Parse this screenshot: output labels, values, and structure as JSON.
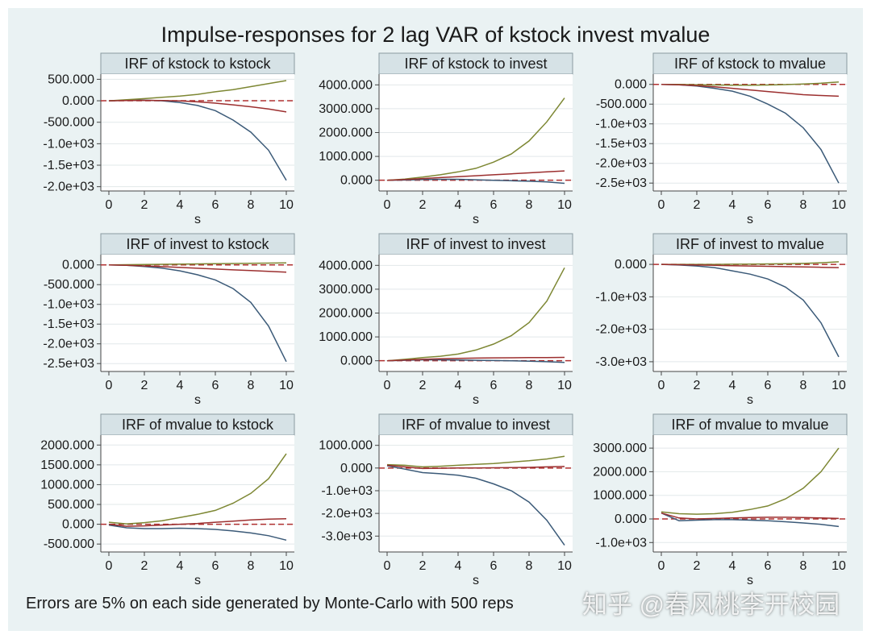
{
  "title": "Impulse-responses for 2 lag VAR of kstock invest mvalue",
  "note": "Errors are 5% on each side generated by Monte-Carlo with 500 reps",
  "watermark": "知乎 @春风桃李开校园",
  "colors": {
    "lower": "#9c2f2f",
    "upper": "#7d8733",
    "irf": "#3b5a78",
    "zero": "#b03030",
    "panel_bg": "#ffffff",
    "outer_bg": "#eaf2f3",
    "header_bg": "#d6e2e6"
  },
  "chart_data": [
    {
      "type": "line",
      "title": "IRF of kstock to kstock",
      "xlabel": "s",
      "xlim": [
        0,
        10
      ],
      "xticks": [
        "0",
        "2",
        "4",
        "6",
        "8",
        "10"
      ],
      "ylim": [
        -2100,
        620
      ],
      "yticks": [
        {
          "v": 500,
          "label": "500.000"
        },
        {
          "v": 0,
          "label": "0.000"
        },
        {
          "v": -500,
          "label": "-500.000"
        },
        {
          "v": -1000,
          "label": "-1.0e+03"
        },
        {
          "v": -1500,
          "label": "-1.5e+03"
        },
        {
          "v": -2000,
          "label": "-2.0e+03"
        }
      ],
      "x": [
        0,
        1,
        2,
        3,
        4,
        5,
        6,
        7,
        8,
        9,
        10
      ],
      "series": [
        {
          "role": "irf",
          "values": [
            0,
            10,
            15,
            0,
            -40,
            -110,
            -230,
            -450,
            -730,
            -1150,
            -1850
          ]
        },
        {
          "role": "upper",
          "values": [
            0,
            25,
            50,
            80,
            110,
            150,
            210,
            260,
            330,
            400,
            470
          ]
        },
        {
          "role": "lower",
          "values": [
            0,
            5,
            10,
            5,
            -5,
            -25,
            -55,
            -95,
            -140,
            -190,
            -260
          ]
        }
      ]
    },
    {
      "type": "line",
      "title": "IRF of kstock to invest",
      "xlabel": "s",
      "xlim": [
        0,
        10
      ],
      "xticks": [
        "0",
        "2",
        "4",
        "6",
        "8",
        "10"
      ],
      "ylim": [
        -450,
        4450
      ],
      "yticks": [
        {
          "v": 4000,
          "label": "4000.000"
        },
        {
          "v": 3000,
          "label": "3000.000"
        },
        {
          "v": 2000,
          "label": "2000.000"
        },
        {
          "v": 1000,
          "label": "1000.000"
        },
        {
          "v": 0,
          "label": "0.000"
        }
      ],
      "x": [
        0,
        1,
        2,
        3,
        4,
        5,
        6,
        7,
        8,
        9,
        10
      ],
      "series": [
        {
          "role": "irf",
          "values": [
            0,
            10,
            30,
            40,
            40,
            20,
            0,
            -20,
            -40,
            -70,
            -130
          ]
        },
        {
          "role": "upper",
          "values": [
            0,
            50,
            130,
            230,
            350,
            500,
            760,
            1100,
            1650,
            2450,
            3450
          ]
        },
        {
          "role": "lower",
          "values": [
            0,
            30,
            70,
            110,
            150,
            190,
            230,
            270,
            310,
            350,
            390
          ]
        }
      ]
    },
    {
      "type": "line",
      "title": "IRF of kstock to mvalue",
      "xlabel": "s",
      "xlim": [
        0,
        10
      ],
      "xticks": [
        "0",
        "2",
        "4",
        "6",
        "8",
        "10"
      ],
      "ylim": [
        -2700,
        260
      ],
      "yticks": [
        {
          "v": 0,
          "label": "0.000"
        },
        {
          "v": -500,
          "label": "-500.000"
        },
        {
          "v": -1000,
          "label": "-1.0e+03"
        },
        {
          "v": -1500,
          "label": "-1.5e+03"
        },
        {
          "v": -2000,
          "label": "-2.0e+03"
        },
        {
          "v": -2500,
          "label": "-2.5e+03"
        }
      ],
      "x": [
        0,
        1,
        2,
        3,
        4,
        5,
        6,
        7,
        8,
        9,
        10
      ],
      "series": [
        {
          "role": "irf",
          "values": [
            0,
            -10,
            -40,
            -100,
            -170,
            -300,
            -500,
            -730,
            -1100,
            -1650,
            -2500
          ]
        },
        {
          "role": "upper",
          "values": [
            0,
            0,
            -10,
            -15,
            -20,
            -20,
            -15,
            -5,
            10,
            30,
            60
          ]
        },
        {
          "role": "lower",
          "values": [
            0,
            -10,
            -30,
            -60,
            -100,
            -140,
            -180,
            -220,
            -260,
            -280,
            -300
          ]
        }
      ]
    },
    {
      "type": "line",
      "title": "IRF of invest to kstock",
      "xlabel": "s",
      "xlim": [
        0,
        10
      ],
      "xticks": [
        "0",
        "2",
        "4",
        "6",
        "8",
        "10"
      ],
      "ylim": [
        -2700,
        260
      ],
      "yticks": [
        {
          "v": 0,
          "label": "0.000"
        },
        {
          "v": -500,
          "label": "-500.000"
        },
        {
          "v": -1000,
          "label": "-1.0e+03"
        },
        {
          "v": -1500,
          "label": "-1.5e+03"
        },
        {
          "v": -2000,
          "label": "-2.0e+03"
        },
        {
          "v": -2500,
          "label": "-2.5e+03"
        }
      ],
      "x": [
        0,
        1,
        2,
        3,
        4,
        5,
        6,
        7,
        8,
        9,
        10
      ],
      "series": [
        {
          "role": "irf",
          "values": [
            0,
            -10,
            -40,
            -80,
            -150,
            -250,
            -380,
            -600,
            -950,
            -1550,
            -2450
          ]
        },
        {
          "role": "upper",
          "values": [
            0,
            5,
            10,
            15,
            20,
            25,
            30,
            35,
            40,
            45,
            50
          ]
        },
        {
          "role": "lower",
          "values": [
            0,
            -10,
            -25,
            -45,
            -65,
            -85,
            -105,
            -125,
            -145,
            -165,
            -185
          ]
        }
      ]
    },
    {
      "type": "line",
      "title": "IRF of invest to invest",
      "xlabel": "s",
      "xlim": [
        0,
        10
      ],
      "xticks": [
        "0",
        "2",
        "4",
        "6",
        "8",
        "10"
      ],
      "ylim": [
        -450,
        4450
      ],
      "yticks": [
        {
          "v": 4000,
          "label": "4000.000"
        },
        {
          "v": 3000,
          "label": "3000.000"
        },
        {
          "v": 2000,
          "label": "2000.000"
        },
        {
          "v": 1000,
          "label": "1000.000"
        },
        {
          "v": 0,
          "label": "0.000"
        }
      ],
      "x": [
        0,
        1,
        2,
        3,
        4,
        5,
        6,
        7,
        8,
        9,
        10
      ],
      "series": [
        {
          "role": "irf",
          "values": [
            0,
            20,
            40,
            40,
            30,
            20,
            10,
            0,
            -20,
            -40,
            -70
          ]
        },
        {
          "role": "upper",
          "values": [
            0,
            60,
            130,
            190,
            280,
            450,
            700,
            1050,
            1600,
            2500,
            3900
          ]
        },
        {
          "role": "lower",
          "values": [
            0,
            30,
            60,
            80,
            100,
            110,
            120,
            125,
            130,
            135,
            140
          ]
        }
      ]
    },
    {
      "type": "line",
      "title": "IRF of invest to mvalue",
      "xlabel": "s",
      "xlim": [
        0,
        10
      ],
      "xticks": [
        "0",
        "2",
        "4",
        "6",
        "8",
        "10"
      ],
      "ylim": [
        -3300,
        300
      ],
      "yticks": [
        {
          "v": 0,
          "label": "0.000"
        },
        {
          "v": -1000,
          "label": "-1.0e+03"
        },
        {
          "v": -2000,
          "label": "-2.0e+03"
        },
        {
          "v": -3000,
          "label": "-3.0e+03"
        }
      ],
      "x": [
        0,
        1,
        2,
        3,
        4,
        5,
        6,
        7,
        8,
        9,
        10
      ],
      "series": [
        {
          "role": "irf",
          "values": [
            0,
            -20,
            -50,
            -100,
            -200,
            -300,
            -450,
            -700,
            -1100,
            -1800,
            -2850
          ]
        },
        {
          "role": "upper",
          "values": [
            0,
            0,
            0,
            0,
            5,
            10,
            15,
            20,
            30,
            50,
            80
          ]
        },
        {
          "role": "lower",
          "values": [
            0,
            -10,
            -20,
            -30,
            -40,
            -50,
            -60,
            -70,
            -80,
            -90,
            -100
          ]
        }
      ]
    },
    {
      "type": "line",
      "title": "IRF of mvalue to kstock",
      "xlabel": "s",
      "xlim": [
        0,
        10
      ],
      "xticks": [
        "0",
        "2",
        "4",
        "6",
        "8",
        "10"
      ],
      "ylim": [
        -700,
        2250
      ],
      "yticks": [
        {
          "v": 2000,
          "label": "2000.000"
        },
        {
          "v": 1500,
          "label": "1500.000"
        },
        {
          "v": 1000,
          "label": "1000.000"
        },
        {
          "v": 500,
          "label": "500.000"
        },
        {
          "v": 0,
          "label": "0.000"
        },
        {
          "v": -500,
          "label": "-500.000"
        }
      ],
      "x": [
        0,
        1,
        2,
        3,
        4,
        5,
        6,
        7,
        8,
        9,
        10
      ],
      "series": [
        {
          "role": "irf",
          "values": [
            -20,
            -90,
            -110,
            -110,
            -100,
            -110,
            -130,
            -170,
            -220,
            -290,
            -400
          ]
        },
        {
          "role": "upper",
          "values": [
            50,
            10,
            40,
            90,
            170,
            250,
            350,
            530,
            780,
            1150,
            1780
          ]
        },
        {
          "role": "lower",
          "values": [
            0,
            -50,
            -40,
            -20,
            0,
            20,
            50,
            80,
            110,
            130,
            140
          ]
        }
      ]
    },
    {
      "type": "line",
      "title": "IRF of mvalue to invest",
      "xlabel": "s",
      "xlim": [
        0,
        10
      ],
      "xticks": [
        "0",
        "2",
        "4",
        "6",
        "8",
        "10"
      ],
      "ylim": [
        -3700,
        1450
      ],
      "yticks": [
        {
          "v": 1000,
          "label": "1000.000"
        },
        {
          "v": 0,
          "label": "0.000"
        },
        {
          "v": -1000,
          "label": "-1.0e+03"
        },
        {
          "v": -2000,
          "label": "-2.0e+03"
        },
        {
          "v": -3000,
          "label": "-3.0e+03"
        }
      ],
      "x": [
        0,
        1,
        2,
        3,
        4,
        5,
        6,
        7,
        8,
        9,
        10
      ],
      "series": [
        {
          "role": "irf",
          "values": [
            100,
            -50,
            -200,
            -250,
            -320,
            -450,
            -700,
            -1000,
            -1500,
            -2300,
            -3400
          ]
        },
        {
          "role": "upper",
          "values": [
            150,
            120,
            50,
            80,
            120,
            160,
            200,
            260,
            320,
            400,
            520
          ]
        },
        {
          "role": "lower",
          "values": [
            120,
            50,
            -20,
            -10,
            0,
            5,
            10,
            20,
            30,
            50,
            70
          ]
        }
      ]
    },
    {
      "type": "line",
      "title": "IRF of mvalue to mvalue",
      "xlabel": "s",
      "xlim": [
        0,
        10
      ],
      "xticks": [
        "0",
        "2",
        "4",
        "6",
        "8",
        "10"
      ],
      "ylim": [
        -1400,
        3550
      ],
      "yticks": [
        {
          "v": 3000,
          "label": "3000.000"
        },
        {
          "v": 2000,
          "label": "2000.000"
        },
        {
          "v": 1000,
          "label": "1000.000"
        },
        {
          "v": 0,
          "label": "0.000"
        },
        {
          "v": -1000,
          "label": "-1.0e+03"
        }
      ],
      "x": [
        0,
        1,
        2,
        3,
        4,
        5,
        6,
        7,
        8,
        9,
        10
      ],
      "series": [
        {
          "role": "irf",
          "values": [
            250,
            -80,
            -50,
            -30,
            -30,
            -50,
            -80,
            -120,
            -170,
            -230,
            -320
          ]
        },
        {
          "role": "upper",
          "values": [
            300,
            220,
            200,
            220,
            280,
            400,
            550,
            850,
            1300,
            2000,
            3000
          ]
        },
        {
          "role": "lower",
          "values": [
            250,
            40,
            0,
            20,
            40,
            60,
            70,
            70,
            60,
            40,
            20
          ]
        }
      ]
    }
  ]
}
